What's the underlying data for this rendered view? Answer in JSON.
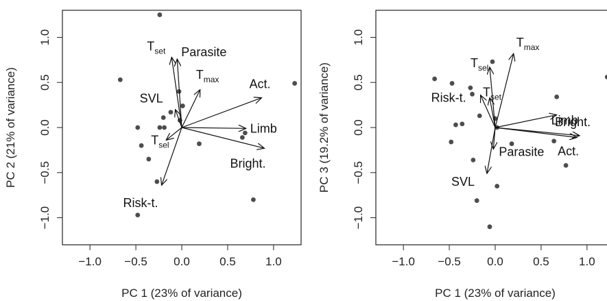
{
  "chart_data": [
    {
      "type": "scatter",
      "subtype": "pca-biplot",
      "xlabel": "PC 1 (23% of variance)",
      "ylabel": "PC 2 (21% of variance)",
      "xlim": [
        -1.3,
        1.3
      ],
      "ylim": [
        -1.3,
        1.3
      ],
      "xticks": [
        -1.0,
        -0.5,
        0.0,
        0.5,
        1.0
      ],
      "xtick_labels": [
        "−1.0",
        "−0.5",
        "0.0",
        "0.5",
        "1.0"
      ],
      "yticks": [
        -1.0,
        -0.5,
        0.0,
        0.5,
        1.0
      ],
      "ytick_labels": [
        "−1.0",
        "−0.5",
        "0.0",
        "0.5",
        "1.0"
      ],
      "grid": false,
      "points": [
        {
          "x": -0.24,
          "y": 1.25
        },
        {
          "x": -0.67,
          "y": 0.53
        },
        {
          "x": -0.03,
          "y": 0.4
        },
        {
          "x": 0.01,
          "y": 0.24
        },
        {
          "x": -0.12,
          "y": 0.17
        },
        {
          "x": -0.2,
          "y": 0.11
        },
        {
          "x": -0.02,
          "y": 0.08
        },
        {
          "x": -0.48,
          "y": 0.0
        },
        {
          "x": -0.24,
          "y": 0.0
        },
        {
          "x": -0.19,
          "y": 0.0
        },
        {
          "x": -0.44,
          "y": -0.2
        },
        {
          "x": -0.36,
          "y": -0.35
        },
        {
          "x": -0.27,
          "y": -0.6
        },
        {
          "x": -0.48,
          "y": -0.97
        },
        {
          "x": 0.19,
          "y": -0.18
        },
        {
          "x": 0.69,
          "y": -0.06
        },
        {
          "x": 0.66,
          "y": -0.11
        },
        {
          "x": 0.78,
          "y": -0.8
        },
        {
          "x": 1.23,
          "y": 0.49
        }
      ],
      "loadings": [
        {
          "name": "T",
          "sub": "set",
          "x": -0.11,
          "y": 0.78
        },
        {
          "name": "Parasite",
          "sub": "",
          "x": -0.05,
          "y": 0.76
        },
        {
          "name": "T",
          "sub": "max",
          "x": 0.2,
          "y": 0.42
        },
        {
          "name": "Act.",
          "sub": "",
          "x": 0.87,
          "y": 0.33
        },
        {
          "name": "SVL",
          "sub": "",
          "x": -0.07,
          "y": 0.2
        },
        {
          "name": "Limb",
          "sub": "",
          "x": 0.7,
          "y": -0.01
        },
        {
          "name": "Bright.",
          "sub": "",
          "x": 0.9,
          "y": -0.23
        },
        {
          "name": "T",
          "sub": "sel",
          "x": -0.17,
          "y": -0.14
        },
        {
          "name": "Risk-t.",
          "sub": "",
          "x": -0.22,
          "y": -0.64
        }
      ]
    },
    {
      "type": "scatter",
      "subtype": "pca-biplot",
      "xlabel": "PC 1 (23% of variance)",
      "ylabel": "PC 3 (19.2% of variance)",
      "xlim": [
        -1.3,
        1.3
      ],
      "ylim": [
        -1.3,
        1.3
      ],
      "xticks": [
        -1.0,
        -0.5,
        0.0,
        0.5,
        1.0
      ],
      "xtick_labels": [
        "−1.0",
        "−0.5",
        "0.0",
        "0.5",
        "1.0"
      ],
      "yticks": [
        -1.0,
        -0.5,
        0.0,
        0.5,
        1.0
      ],
      "ytick_labels": [
        "−1.0",
        "−0.5",
        "0.0",
        "0.5",
        "1.0"
      ],
      "grid": false,
      "points": [
        {
          "x": -0.66,
          "y": 0.54
        },
        {
          "x": -0.47,
          "y": 0.49
        },
        {
          "x": -0.27,
          "y": 0.44
        },
        {
          "x": -0.25,
          "y": 0.37
        },
        {
          "x": -0.03,
          "y": 0.73
        },
        {
          "x": -0.17,
          "y": 0.13
        },
        {
          "x": 0.0,
          "y": 0.1
        },
        {
          "x": -0.43,
          "y": 0.03
        },
        {
          "x": -0.36,
          "y": 0.04
        },
        {
          "x": -0.48,
          "y": -0.16
        },
        {
          "x": 0.02,
          "y": 0.0
        },
        {
          "x": 0.18,
          "y": -0.18
        },
        {
          "x": -0.24,
          "y": -0.36
        },
        {
          "x": -0.2,
          "y": -0.81
        },
        {
          "x": 0.02,
          "y": -0.65
        },
        {
          "x": -0.06,
          "y": -1.1
        },
        {
          "x": 0.67,
          "y": 0.34
        },
        {
          "x": 0.64,
          "y": -0.15
        },
        {
          "x": 0.77,
          "y": -0.42
        },
        {
          "x": 1.22,
          "y": 0.56
        }
      ],
      "loadings": [
        {
          "name": "T",
          "sub": "max",
          "x": 0.2,
          "y": 0.82
        },
        {
          "name": "T",
          "sub": "sel",
          "x": -0.06,
          "y": 0.67
        },
        {
          "name": "Risk-t.",
          "sub": "",
          "x": -0.16,
          "y": 0.36
        },
        {
          "name": "T",
          "sub": "set",
          "x": -0.06,
          "y": 0.33
        },
        {
          "name": "Limb",
          "sub": "",
          "x": 0.67,
          "y": 0.14
        },
        {
          "name": "Bright.",
          "sub": "",
          "x": 0.92,
          "y": -0.09
        },
        {
          "name": "Act.",
          "sub": "",
          "x": 0.89,
          "y": -0.11
        },
        {
          "name": "Parasite",
          "sub": "",
          "x": -0.02,
          "y": -0.24
        },
        {
          "name": "SVL",
          "sub": "",
          "x": -0.09,
          "y": -0.51
        }
      ]
    }
  ]
}
